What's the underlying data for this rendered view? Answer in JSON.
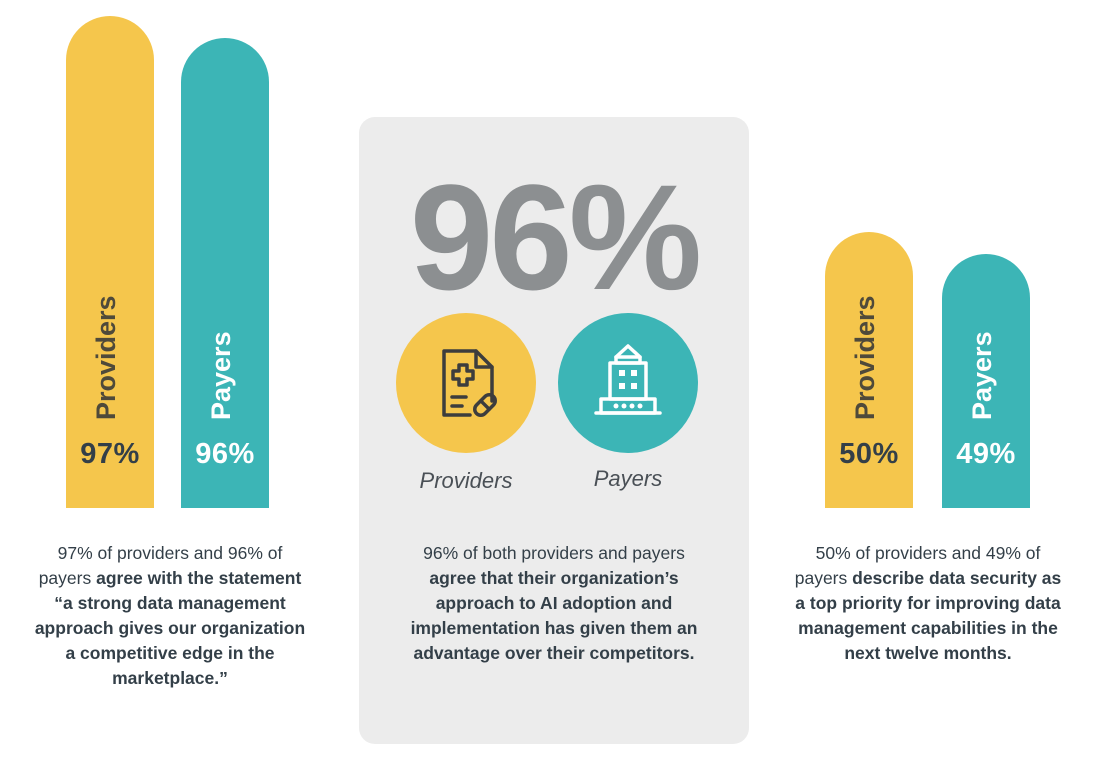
{
  "chart_data": [
    {
      "type": "bar",
      "categories": [
        "Providers",
        "Payers"
      ],
      "values": [
        97,
        96
      ],
      "value_labels": [
        "97%",
        "96%"
      ],
      "colors": [
        "#f5c64c",
        "#3cb5b6"
      ],
      "caption": {
        "plain1": "97% of providers and 96% of payers ",
        "bold": "agree with the statement “a strong data management approach gives our organization a competitive edge in the marketplace.”"
      }
    },
    {
      "type": "stat",
      "value": 96,
      "value_label": "96%",
      "icons": [
        {
          "label": "Providers",
          "icon": "medical-document-icon",
          "color": "#f5c64c"
        },
        {
          "label": "Payers",
          "icon": "building-icon",
          "color": "#3cb5b6"
        }
      ],
      "caption": {
        "plain1": "96% of both providers and payers ",
        "bold": "agree that their organization’s approach to AI adoption and implementation has given them an advantage over their competitors."
      }
    },
    {
      "type": "bar",
      "categories": [
        "Providers",
        "Payers"
      ],
      "values": [
        50,
        49
      ],
      "value_labels": [
        "50%",
        "49%"
      ],
      "colors": [
        "#f5c64c",
        "#3cb5b6"
      ],
      "caption": {
        "plain1": "50% of providers and 49% of payers ",
        "bold": "describe data security as a top priority for improving data management capabilities in the next twelve months."
      }
    }
  ]
}
